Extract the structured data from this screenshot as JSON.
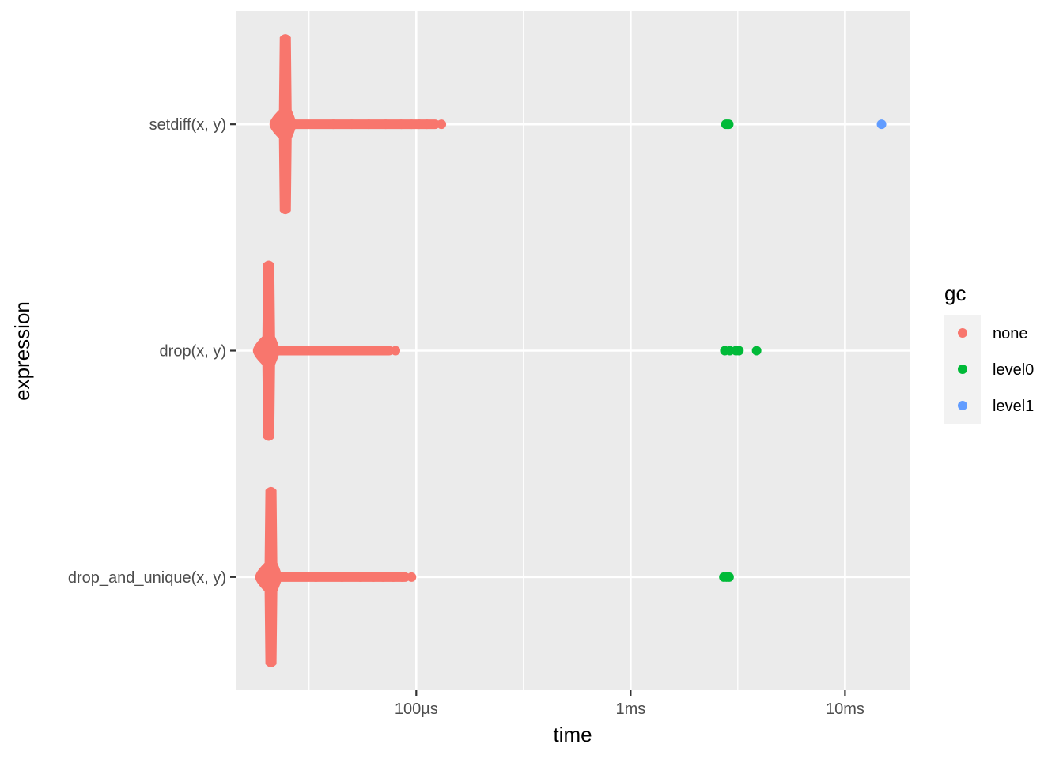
{
  "chart_data": {
    "type": "scatter",
    "subtype": "beeswarm",
    "xlabel": "time",
    "ylabel": "expression",
    "x_scale": "log10",
    "x_unit": "seconds",
    "xlim": [
      1.45e-05,
      0.02
    ],
    "x_ticks": [
      {
        "value": 0.0001,
        "label": "100µs"
      },
      {
        "value": 0.001,
        "label": "1ms"
      },
      {
        "value": 0.01,
        "label": "10ms"
      }
    ],
    "x_minor_breaks": [
      3.16e-05,
      0.000316,
      0.00316
    ],
    "categories": [
      "setdiff(x, y)",
      "drop(x, y)",
      "drop_and_unique(x, y)"
    ],
    "legend": {
      "title": "gc",
      "placement": "right",
      "entries": [
        {
          "label": "none",
          "color": "#F8766D"
        },
        {
          "label": "level0",
          "color": "#00BA38"
        },
        {
          "label": "level1",
          "color": "#619CFF"
        }
      ]
    },
    "grid": true,
    "series": [
      {
        "category": "setdiff(x, y)",
        "dense_mode": 2.45e-05,
        "dense_min": 2.3e-05,
        "gc_points": [
          {
            "gc": "none",
            "time": 4.1e-05
          },
          {
            "gc": "none",
            "time": 5e-05
          },
          {
            "gc": "none",
            "time": 6e-05
          },
          {
            "gc": "none",
            "time": 7.2e-05
          },
          {
            "gc": "none",
            "time": 8.5e-05
          },
          {
            "gc": "none",
            "time": 9.5e-05
          },
          {
            "gc": "none",
            "time": 0.000103
          },
          {
            "gc": "none",
            "time": 0.000112
          },
          {
            "gc": "none",
            "time": 0.000131
          },
          {
            "gc": "level0",
            "time": 0.00278
          },
          {
            "gc": "level0",
            "time": 0.00282
          },
          {
            "gc": "level0",
            "time": 0.00287
          },
          {
            "gc": "level1",
            "time": 0.0148
          }
        ]
      },
      {
        "category": "drop(x, y)",
        "dense_mode": 2.05e-05,
        "dense_min": 1.95e-05,
        "gc_points": [
          {
            "gc": "none",
            "time": 2.95e-05
          },
          {
            "gc": "none",
            "time": 4e-05
          },
          {
            "gc": "none",
            "time": 5e-05
          },
          {
            "gc": "none",
            "time": 6.2e-05
          },
          {
            "gc": "none",
            "time": 7.2e-05
          },
          {
            "gc": "none",
            "time": 8e-05
          },
          {
            "gc": "level0",
            "time": 0.00275
          },
          {
            "gc": "level0",
            "time": 0.0029
          },
          {
            "gc": "level0",
            "time": 0.0031
          },
          {
            "gc": "level0",
            "time": 0.0032
          },
          {
            "gc": "level0",
            "time": 0.00387
          }
        ]
      },
      {
        "category": "drop_and_unique(x, y)",
        "dense_mode": 2.1e-05,
        "dense_min": 2e-05,
        "gc_points": [
          {
            "gc": "none",
            "time": 3.4e-05
          },
          {
            "gc": "none",
            "time": 4.5e-05
          },
          {
            "gc": "none",
            "time": 5.5e-05
          },
          {
            "gc": "none",
            "time": 6.3e-05
          },
          {
            "gc": "none",
            "time": 7e-05
          },
          {
            "gc": "none",
            "time": 7.8e-05
          },
          {
            "gc": "none",
            "time": 8.6e-05
          },
          {
            "gc": "none",
            "time": 9.5e-05
          },
          {
            "gc": "level0",
            "time": 0.00272
          },
          {
            "gc": "level0",
            "time": 0.0028
          },
          {
            "gc": "level0",
            "time": 0.00288
          }
        ]
      }
    ]
  }
}
